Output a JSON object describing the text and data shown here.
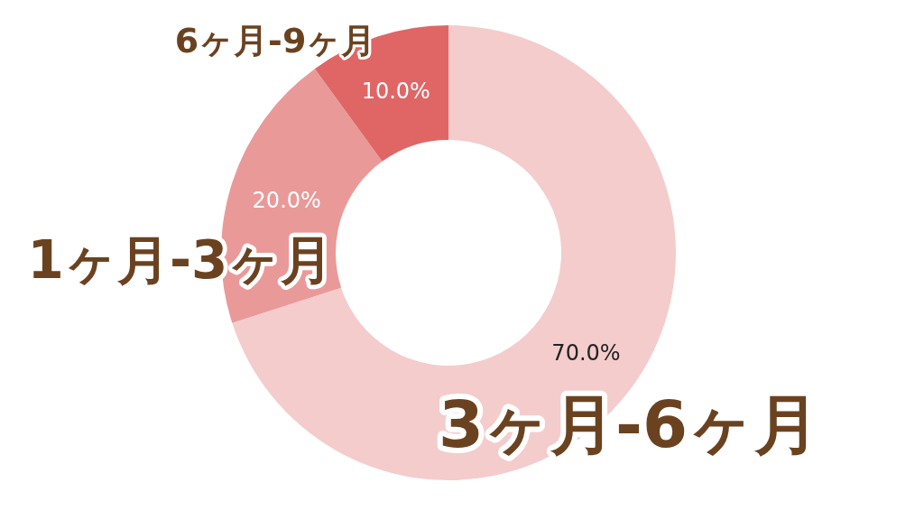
{
  "chart_data": {
    "type": "donut",
    "categories": [
      "3ヶ月-6ヶ月",
      "1ヶ月-3ヶ月",
      "6ヶ月-9ヶ月"
    ],
    "values": [
      70,
      20,
      10
    ],
    "colors": [
      "#f4cccc",
      "#ea9999",
      "#e06666"
    ],
    "value_labels": [
      "70.0%",
      "20.0%",
      "10.0%"
    ]
  }
}
